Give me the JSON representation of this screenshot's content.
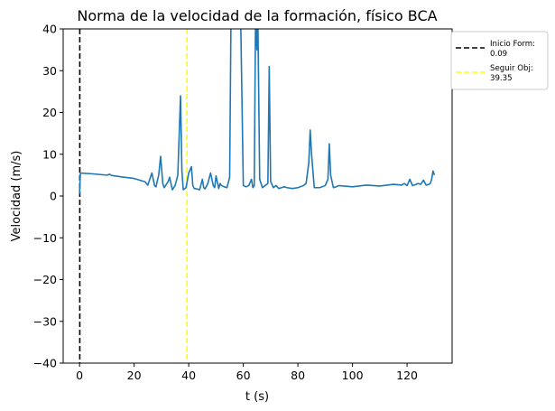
{
  "chart_data": {
    "type": "line",
    "title": "Norma de la velocidad de la formación, físico BCA",
    "xlabel": "t (s)",
    "ylabel": "Velocidad (m/s)",
    "xlim": [
      -6,
      136.5
    ],
    "ylim": [
      -40,
      40
    ],
    "xticks": [
      0,
      20,
      40,
      60,
      80,
      100,
      120
    ],
    "yticks": [
      -40,
      -30,
      -20,
      -10,
      0,
      10,
      20,
      30,
      40
    ],
    "xtick_labels": [
      "0",
      "20",
      "40",
      "60",
      "80",
      "100",
      "120"
    ],
    "ytick_labels": [
      "−40",
      "−30",
      "−20",
      "−10",
      "0",
      "10",
      "20",
      "30",
      "40"
    ],
    "grid": false,
    "legend_position": "outside-top-right",
    "series": [
      {
        "color": "#1f77b4",
        "style": "solid",
        "x": [
          0.0,
          0.3,
          5,
          10,
          11,
          11.5,
          12,
          15,
          20,
          24,
          25,
          26.5,
          27.5,
          28,
          29,
          29.7,
          30.5,
          31,
          32.5,
          33,
          34,
          35,
          36,
          37,
          37.5,
          38,
          39,
          40,
          41,
          41.5,
          42,
          43,
          44,
          45,
          45.5,
          46,
          47,
          48,
          49,
          49.5,
          50,
          51,
          51.5,
          52,
          53,
          54,
          55,
          55.5,
          56,
          57,
          58.5,
          59,
          60,
          61,
          62,
          63,
          63.5,
          64,
          64.5,
          65,
          65.3,
          66,
          67,
          68,
          69,
          69.5,
          70,
          71,
          72,
          73,
          74,
          75,
          76,
          78,
          80,
          82,
          83,
          84,
          84.5,
          85,
          86,
          88,
          90,
          91,
          91.5,
          92,
          93,
          94,
          95,
          100,
          105,
          110,
          115,
          118,
          119,
          120,
          121,
          122,
          123,
          124,
          125,
          126,
          127,
          128,
          128.5,
          129,
          129.5,
          130
        ],
        "y": [
          0.5,
          5.5,
          5.3,
          5.0,
          5.2,
          5.0,
          4.9,
          4.6,
          4.2,
          3.4,
          2.6,
          5.5,
          2.5,
          2.2,
          5.0,
          9.5,
          3.0,
          2.0,
          3.5,
          4.5,
          1.5,
          2.5,
          5.0,
          24.0,
          6.0,
          1.5,
          2.0,
          5.5,
          7.0,
          2.5,
          1.8,
          1.7,
          1.5,
          4.0,
          2.0,
          1.7,
          3.0,
          5.5,
          2.5,
          2.0,
          4.8,
          1.8,
          3.0,
          2.5,
          2.2,
          2.0,
          4.5,
          44,
          44,
          44,
          44,
          44,
          2.5,
          2.2,
          2.5,
          4.0,
          2.0,
          2.5,
          44,
          35.0,
          44,
          4.0,
          2.0,
          2.5,
          3.0,
          31.0,
          3.5,
          2.0,
          2.5,
          1.8,
          2.0,
          2.2,
          2.0,
          1.8,
          2.0,
          2.5,
          3.0,
          8.0,
          15.8,
          10.0,
          2.0,
          2.0,
          2.5,
          4.0,
          12.5,
          5.0,
          2.0,
          2.2,
          2.5,
          2.2,
          2.6,
          2.4,
          2.8,
          2.6,
          3.0,
          2.5,
          4.0,
          2.5,
          2.7,
          3.0,
          2.8,
          3.8,
          2.6,
          2.8,
          3.0,
          4.0,
          6.0,
          5.0
        ]
      }
    ],
    "vlines": [
      {
        "x": 0.09,
        "color": "#000000",
        "label_line1": "Inicio Form:",
        "label_line2": "0.09"
      },
      {
        "x": 39.35,
        "color": "#ffff00",
        "label_line1": "Seguir Obj:",
        "label_line2": "39.35"
      }
    ]
  }
}
